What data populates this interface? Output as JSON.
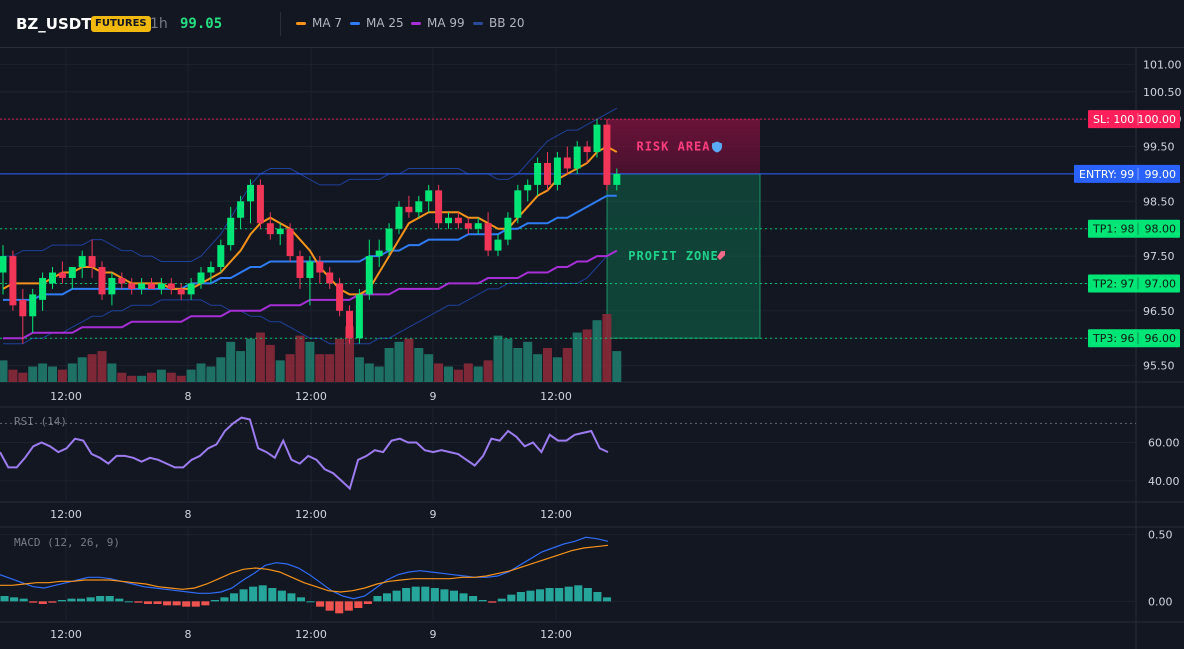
{
  "header": {
    "symbol": "BZ_USDT",
    "badge": "FUTURES",
    "interval": "1h",
    "price": "99.05",
    "legend": [
      {
        "label": "MA 7",
        "color": "#f7931a"
      },
      {
        "label": "MA 25",
        "color": "#2f7cf6"
      },
      {
        "label": "MA 99",
        "color": "#a72fd6"
      },
      {
        "label": "BB 20",
        "color": "#2a4a9a"
      }
    ]
  },
  "colors": {
    "up": "#26a69a",
    "down": "#ef5350",
    "bull_candle": "#00e676",
    "bear_candle": "#f23658",
    "sl": "#ff1f5a",
    "entry": "#2962ff",
    "tp": "#00e676",
    "rsi": "#9c7cf0",
    "macd": "#2f6cf6",
    "signal": "#f7931a"
  },
  "chart_data": [
    {
      "type": "candlestick",
      "pane": "price",
      "ylim": [
        95.2,
        101.3
      ],
      "y_ticks": [
        "101.00",
        "100.50",
        "100.00",
        "99.50",
        "99.00",
        "98.50",
        "98.00",
        "97.50",
        "97.00",
        "96.50",
        "96.00",
        "95.50"
      ],
      "x_ticks": [
        "12:00",
        "8",
        "12:00",
        "9",
        "12:00"
      ],
      "candles": [
        {
          "o": 97.2,
          "h": 97.7,
          "l": 96.8,
          "c": 97.5
        },
        {
          "o": 97.5,
          "h": 97.6,
          "l": 96.5,
          "c": 96.6
        },
        {
          "o": 96.7,
          "h": 96.9,
          "l": 95.9,
          "c": 96.4
        },
        {
          "o": 96.4,
          "h": 96.9,
          "l": 96.1,
          "c": 96.8
        },
        {
          "o": 96.7,
          "h": 97.2,
          "l": 96.5,
          "c": 97.1
        },
        {
          "o": 97.0,
          "h": 97.3,
          "l": 96.9,
          "c": 97.2
        },
        {
          "o": 97.2,
          "h": 97.4,
          "l": 97.0,
          "c": 97.1
        },
        {
          "o": 97.1,
          "h": 97.3,
          "l": 96.9,
          "c": 97.3
        },
        {
          "o": 97.3,
          "h": 97.6,
          "l": 97.1,
          "c": 97.5
        },
        {
          "o": 97.5,
          "h": 97.8,
          "l": 97.1,
          "c": 97.3
        },
        {
          "o": 97.3,
          "h": 97.4,
          "l": 96.7,
          "c": 96.8
        },
        {
          "o": 96.8,
          "h": 97.2,
          "l": 96.6,
          "c": 97.1
        },
        {
          "o": 97.1,
          "h": 97.2,
          "l": 96.9,
          "c": 97.0
        },
        {
          "o": 97.0,
          "h": 97.1,
          "l": 96.8,
          "c": 96.9
        },
        {
          "o": 96.9,
          "h": 97.1,
          "l": 96.8,
          "c": 97.0
        },
        {
          "o": 97.0,
          "h": 97.1,
          "l": 96.9,
          "c": 96.9
        },
        {
          "o": 96.9,
          "h": 97.1,
          "l": 96.8,
          "c": 97.0
        },
        {
          "o": 97.0,
          "h": 97.1,
          "l": 96.8,
          "c": 96.9
        },
        {
          "o": 96.9,
          "h": 97.0,
          "l": 96.7,
          "c": 96.8
        },
        {
          "o": 96.8,
          "h": 97.1,
          "l": 96.7,
          "c": 97.0
        },
        {
          "o": 97.0,
          "h": 97.3,
          "l": 96.9,
          "c": 97.2
        },
        {
          "o": 97.2,
          "h": 97.4,
          "l": 97.0,
          "c": 97.3
        },
        {
          "o": 97.3,
          "h": 97.8,
          "l": 97.2,
          "c": 97.7
        },
        {
          "o": 97.7,
          "h": 98.4,
          "l": 97.6,
          "c": 98.2
        },
        {
          "o": 98.2,
          "h": 98.6,
          "l": 98.0,
          "c": 98.5
        },
        {
          "o": 98.5,
          "h": 98.9,
          "l": 98.1,
          "c": 98.8
        },
        {
          "o": 98.8,
          "h": 98.9,
          "l": 98.0,
          "c": 98.1
        },
        {
          "o": 98.1,
          "h": 98.3,
          "l": 97.8,
          "c": 97.9
        },
        {
          "o": 97.9,
          "h": 98.1,
          "l": 97.7,
          "c": 98.0
        },
        {
          "o": 98.0,
          "h": 98.1,
          "l": 97.4,
          "c": 97.5
        },
        {
          "o": 97.5,
          "h": 97.6,
          "l": 96.9,
          "c": 97.1
        },
        {
          "o": 97.1,
          "h": 97.5,
          "l": 96.6,
          "c": 97.4
        },
        {
          "o": 97.4,
          "h": 97.5,
          "l": 97.0,
          "c": 97.2
        },
        {
          "o": 97.2,
          "h": 97.3,
          "l": 96.9,
          "c": 97.0
        },
        {
          "o": 97.0,
          "h": 97.1,
          "l": 96.4,
          "c": 96.5
        },
        {
          "o": 96.5,
          "h": 96.6,
          "l": 95.9,
          "c": 96.0
        },
        {
          "o": 96.0,
          "h": 96.9,
          "l": 95.9,
          "c": 96.8
        },
        {
          "o": 96.8,
          "h": 97.8,
          "l": 96.7,
          "c": 97.5
        },
        {
          "o": 97.5,
          "h": 97.8,
          "l": 97.3,
          "c": 97.6
        },
        {
          "o": 97.6,
          "h": 98.1,
          "l": 97.5,
          "c": 98.0
        },
        {
          "o": 98.0,
          "h": 98.5,
          "l": 97.9,
          "c": 98.4
        },
        {
          "o": 98.4,
          "h": 98.6,
          "l": 98.2,
          "c": 98.3
        },
        {
          "o": 98.3,
          "h": 98.6,
          "l": 98.2,
          "c": 98.5
        },
        {
          "o": 98.5,
          "h": 98.8,
          "l": 98.3,
          "c": 98.7
        },
        {
          "o": 98.7,
          "h": 98.8,
          "l": 98.0,
          "c": 98.1
        },
        {
          "o": 98.1,
          "h": 98.3,
          "l": 98.0,
          "c": 98.2
        },
        {
          "o": 98.2,
          "h": 98.3,
          "l": 98.0,
          "c": 98.1
        },
        {
          "o": 98.1,
          "h": 98.2,
          "l": 97.9,
          "c": 98.0
        },
        {
          "o": 98.0,
          "h": 98.2,
          "l": 97.9,
          "c": 98.1
        },
        {
          "o": 98.1,
          "h": 98.3,
          "l": 97.5,
          "c": 97.6
        },
        {
          "o": 97.6,
          "h": 97.9,
          "l": 97.5,
          "c": 97.8
        },
        {
          "o": 97.8,
          "h": 98.3,
          "l": 97.7,
          "c": 98.2
        },
        {
          "o": 98.2,
          "h": 98.8,
          "l": 98.1,
          "c": 98.7
        },
        {
          "o": 98.7,
          "h": 98.9,
          "l": 98.5,
          "c": 98.8
        },
        {
          "o": 98.8,
          "h": 99.3,
          "l": 98.6,
          "c": 99.2
        },
        {
          "o": 99.2,
          "h": 99.4,
          "l": 98.7,
          "c": 98.8
        },
        {
          "o": 98.8,
          "h": 99.4,
          "l": 98.7,
          "c": 99.3
        },
        {
          "o": 99.3,
          "h": 99.5,
          "l": 99.0,
          "c": 99.1
        },
        {
          "o": 99.1,
          "h": 99.6,
          "l": 99.0,
          "c": 99.5
        },
        {
          "o": 99.5,
          "h": 99.6,
          "l": 99.2,
          "c": 99.4
        },
        {
          "o": 99.4,
          "h": 100.0,
          "l": 99.3,
          "c": 99.9
        },
        {
          "o": 99.9,
          "h": 100.0,
          "l": 98.7,
          "c": 98.8
        },
        {
          "o": 98.8,
          "h": 99.1,
          "l": 98.7,
          "c": 99.0
        }
      ],
      "volume": [
        7,
        4,
        3,
        5,
        6,
        5,
        4,
        6,
        8,
        9,
        10,
        6,
        3,
        2,
        2,
        3,
        4,
        3,
        2,
        4,
        6,
        5,
        8,
        13,
        10,
        14,
        16,
        12,
        7,
        9,
        15,
        13,
        9,
        9,
        14,
        18,
        8,
        6,
        5,
        11,
        13,
        14,
        11,
        9,
        6,
        5,
        4,
        6,
        5,
        7,
        15,
        14,
        11,
        13,
        9,
        11,
        8,
        11,
        16,
        17,
        20,
        22,
        10
      ],
      "ma7": [
        96.9,
        97.0,
        97.0,
        97.0,
        97.0,
        97.1,
        97.2,
        97.2,
        97.3,
        97.3,
        97.2,
        97.2,
        97.1,
        97.0,
        97.0,
        97.0,
        97.0,
        96.9,
        96.9,
        96.9,
        97.0,
        97.1,
        97.2,
        97.4,
        97.6,
        97.9,
        98.1,
        98.2,
        98.1,
        98.0,
        97.8,
        97.6,
        97.3,
        97.1,
        96.9,
        96.8,
        96.8,
        96.9,
        97.2,
        97.5,
        97.8,
        98.1,
        98.2,
        98.3,
        98.3,
        98.3,
        98.3,
        98.2,
        98.2,
        98.1,
        98.0,
        98.0,
        98.2,
        98.4,
        98.6,
        98.7,
        98.9,
        99.0,
        99.1,
        99.2,
        99.4,
        99.5,
        99.4
      ],
      "ma25": [
        96.7,
        96.7,
        96.7,
        96.7,
        96.8,
        96.8,
        96.8,
        96.9,
        96.9,
        96.9,
        96.9,
        96.9,
        96.9,
        96.9,
        96.9,
        96.9,
        96.9,
        96.9,
        96.9,
        97.0,
        97.0,
        97.0,
        97.1,
        97.1,
        97.2,
        97.3,
        97.3,
        97.4,
        97.4,
        97.4,
        97.4,
        97.4,
        97.4,
        97.4,
        97.4,
        97.4,
        97.4,
        97.5,
        97.5,
        97.6,
        97.6,
        97.7,
        97.7,
        97.8,
        97.8,
        97.8,
        97.8,
        97.9,
        97.9,
        97.9,
        97.9,
        98.0,
        98.0,
        98.1,
        98.1,
        98.1,
        98.2,
        98.2,
        98.3,
        98.4,
        98.5,
        98.6,
        98.6
      ],
      "ma99": [
        96.0,
        96.0,
        96.0,
        96.1,
        96.1,
        96.1,
        96.1,
        96.1,
        96.2,
        96.2,
        96.2,
        96.2,
        96.2,
        96.3,
        96.3,
        96.3,
        96.3,
        96.3,
        96.3,
        96.4,
        96.4,
        96.4,
        96.4,
        96.5,
        96.5,
        96.5,
        96.5,
        96.6,
        96.6,
        96.6,
        96.6,
        96.7,
        96.7,
        96.7,
        96.7,
        96.7,
        96.8,
        96.8,
        96.8,
        96.8,
        96.9,
        96.9,
        96.9,
        96.9,
        96.9,
        97.0,
        97.0,
        97.0,
        97.0,
        97.1,
        97.1,
        97.1,
        97.1,
        97.2,
        97.2,
        97.2,
        97.3,
        97.3,
        97.4,
        97.4,
        97.5,
        97.5,
        97.6
      ],
      "bb_upper": [
        97.5,
        97.5,
        97.6,
        97.6,
        97.6,
        97.7,
        97.7,
        97.7,
        97.7,
        97.8,
        97.8,
        97.7,
        97.6,
        97.6,
        97.5,
        97.5,
        97.4,
        97.4,
        97.4,
        97.4,
        97.5,
        97.7,
        97.9,
        98.2,
        98.5,
        98.8,
        99.0,
        99.1,
        99.1,
        99.1,
        99.0,
        98.9,
        98.8,
        98.8,
        98.8,
        98.9,
        98.9,
        98.9,
        98.9,
        99.0,
        99.0,
        99.1,
        99.1,
        99.1,
        99.1,
        99.1,
        99.1,
        99.0,
        99.0,
        99.0,
        98.9,
        98.9,
        99.0,
        99.2,
        99.4,
        99.6,
        99.7,
        99.8,
        99.8,
        99.9,
        100.0,
        100.1,
        100.2
      ],
      "bb_lower": [
        95.9,
        95.9,
        95.9,
        96.0,
        96.0,
        96.1,
        96.1,
        96.2,
        96.3,
        96.4,
        96.4,
        96.5,
        96.5,
        96.6,
        96.6,
        96.6,
        96.7,
        96.7,
        96.7,
        96.7,
        96.7,
        96.6,
        96.6,
        96.5,
        96.5,
        96.4,
        96.4,
        96.3,
        96.3,
        96.2,
        96.1,
        96.0,
        96.0,
        95.9,
        95.9,
        95.9,
        95.9,
        95.9,
        96.0,
        96.0,
        96.1,
        96.2,
        96.3,
        96.4,
        96.5,
        96.6,
        96.6,
        96.7,
        96.8,
        96.9,
        96.9,
        97.0,
        97.0,
        97.0,
        97.0,
        97.0,
        97.0,
        97.0,
        97.0,
        97.1,
        97.3,
        97.5,
        97.6
      ],
      "levels": {
        "sl": {
          "value": 100.0,
          "label": "SL: 100",
          "price_label": "100.00"
        },
        "entry": {
          "value": 99.0,
          "label": "ENTRY: 99",
          "price_label": "99.00"
        },
        "tp1": {
          "value": 98.0,
          "label": "TP1: 98",
          "price_label": "98.00"
        },
        "tp2": {
          "value": 97.0,
          "label": "TP2: 97",
          "price_label": "97.00"
        },
        "tp3": {
          "value": 96.0,
          "label": "TP3: 96",
          "price_label": "96.00"
        }
      },
      "zones": {
        "risk": {
          "label": "RISK AREA",
          "icon": "shield-icon"
        },
        "profit": {
          "label": "PROFIT ZONE",
          "icon": "rocket-icon"
        }
      }
    },
    {
      "type": "line",
      "pane": "rsi",
      "title": "RSI (14)",
      "ylim": [
        30,
        78
      ],
      "y_ticks": [
        "60.00",
        "40.00"
      ],
      "overbought": 70,
      "values": [
        55,
        47,
        47,
        52,
        58,
        60,
        58,
        55,
        57,
        62,
        61,
        54,
        52,
        49,
        53,
        53,
        52,
        50,
        52,
        51,
        49,
        47,
        47,
        51,
        53,
        57,
        59,
        66,
        70,
        73,
        72,
        57,
        55,
        52,
        61,
        51,
        49,
        53,
        51,
        46,
        44,
        40,
        36,
        51,
        53,
        56,
        55,
        61,
        62,
        60,
        60,
        56,
        55,
        56,
        55,
        54,
        51,
        48,
        53,
        62,
        61,
        66,
        63,
        58,
        60,
        55,
        64,
        61,
        61,
        64,
        65,
        66,
        57,
        55
      ],
      "x_ticks": [
        "12:00",
        "8",
        "12:00",
        "9",
        "12:00"
      ]
    },
    {
      "type": "bar+line",
      "pane": "macd",
      "title": "MACD (12, 26, 9)",
      "ylim": [
        -0.14,
        0.55
      ],
      "y_ticks": [
        "0.50",
        "0.00"
      ],
      "histogram": [
        0.04,
        0.03,
        0.02,
        -0.01,
        -0.02,
        -0.01,
        0.01,
        0.02,
        0.02,
        0.03,
        0.04,
        0.04,
        0.02,
        0.0,
        -0.01,
        -0.02,
        -0.02,
        -0.03,
        -0.03,
        -0.04,
        -0.04,
        -0.03,
        0.01,
        0.03,
        0.06,
        0.09,
        0.11,
        0.12,
        0.1,
        0.08,
        0.06,
        0.03,
        0.0,
        -0.04,
        -0.07,
        -0.09,
        -0.07,
        -0.05,
        -0.02,
        0.04,
        0.06,
        0.08,
        0.1,
        0.11,
        0.11,
        0.1,
        0.09,
        0.08,
        0.06,
        0.04,
        0.01,
        -0.01,
        0.02,
        0.05,
        0.07,
        0.08,
        0.09,
        0.1,
        0.1,
        0.11,
        0.12,
        0.1,
        0.07,
        0.03
      ],
      "macd": [
        0.2,
        0.17,
        0.14,
        0.11,
        0.1,
        0.12,
        0.14,
        0.16,
        0.18,
        0.18,
        0.17,
        0.15,
        0.13,
        0.11,
        0.1,
        0.09,
        0.08,
        0.07,
        0.06,
        0.06,
        0.07,
        0.1,
        0.16,
        0.21,
        0.27,
        0.29,
        0.28,
        0.25,
        0.2,
        0.14,
        0.08,
        0.04,
        0.02,
        0.04,
        0.1,
        0.16,
        0.2,
        0.22,
        0.23,
        0.22,
        0.21,
        0.2,
        0.19,
        0.18,
        0.18,
        0.19,
        0.22,
        0.27,
        0.32,
        0.37,
        0.4,
        0.43,
        0.45,
        0.48,
        0.47,
        0.45
      ],
      "signal": [
        0.12,
        0.12,
        0.13,
        0.14,
        0.14,
        0.15,
        0.15,
        0.16,
        0.16,
        0.16,
        0.15,
        0.14,
        0.13,
        0.11,
        0.1,
        0.09,
        0.1,
        0.13,
        0.17,
        0.21,
        0.24,
        0.25,
        0.24,
        0.22,
        0.18,
        0.14,
        0.11,
        0.08,
        0.07,
        0.08,
        0.1,
        0.13,
        0.15,
        0.16,
        0.17,
        0.17,
        0.17,
        0.17,
        0.18,
        0.18,
        0.19,
        0.21,
        0.23,
        0.26,
        0.29,
        0.32,
        0.35,
        0.38,
        0.4,
        0.41,
        0.42
      ],
      "x_ticks": [
        "12:00",
        "8",
        "12:00",
        "9",
        "12:00"
      ]
    }
  ]
}
